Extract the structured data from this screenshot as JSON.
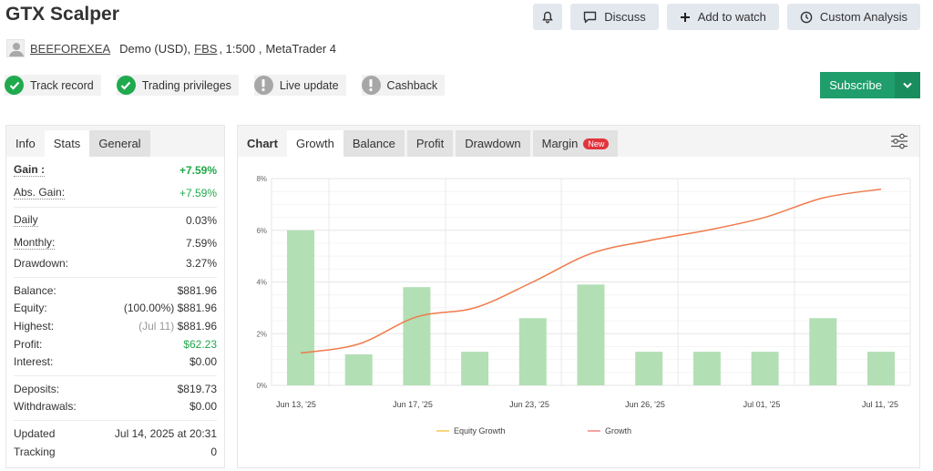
{
  "header": {
    "title": "GTX Scalper",
    "owner": "BEEFOREXEA",
    "account_type": "Demo (USD),",
    "broker": "FBS",
    "leverage": ", 1:500 ,",
    "platform": "MetaTrader 4"
  },
  "actions": {
    "notify_icon": "bell-icon",
    "discuss": "Discuss",
    "add_watch": "Add to watch",
    "custom_analysis": "Custom Analysis"
  },
  "badges": [
    {
      "label": "Track record",
      "status": "ok"
    },
    {
      "label": "Trading privileges",
      "status": "ok"
    },
    {
      "label": "Live update",
      "status": "warn"
    },
    {
      "label": "Cashback",
      "status": "warn"
    }
  ],
  "subscribe": {
    "label": "Subscribe"
  },
  "left_panel": {
    "tabs": [
      "Info",
      "Stats",
      "General"
    ],
    "active_tab": "Stats",
    "gain": {
      "label": "Gain :",
      "value": "+7.59%"
    },
    "abs_gain": {
      "label": "Abs. Gain:",
      "value": "+7.59%"
    },
    "daily": {
      "label": "Daily",
      "value": "0.03%"
    },
    "monthly": {
      "label": "Monthly:",
      "value": "7.59%"
    },
    "drawdown": {
      "label": "Drawdown:",
      "value": "3.27%"
    },
    "balance": {
      "label": "Balance:",
      "value": "$881.96"
    },
    "equity": {
      "label": "Equity:",
      "pct": "(100.00%)",
      "value": "$881.96"
    },
    "highest": {
      "label": "Highest:",
      "date": "(Jul 11)",
      "value": "$881.96"
    },
    "profit": {
      "label": "Profit:",
      "value": "$62.23"
    },
    "interest": {
      "label": "Interest:",
      "value": "$0.00"
    },
    "deposits": {
      "label": "Deposits:",
      "value": "$819.73"
    },
    "withdrawals": {
      "label": "Withdrawals:",
      "value": "$0.00"
    },
    "updated": {
      "label": "Updated",
      "value": "Jul 14, 2025 at 20:31"
    },
    "tracking": {
      "label": "Tracking",
      "value": "0"
    }
  },
  "right_panel": {
    "tabs": [
      "Chart",
      "Growth",
      "Balance",
      "Profit",
      "Drawdown",
      "Margin"
    ],
    "active_tab": "Growth",
    "new_badge": "New"
  },
  "colors": {
    "bar": "#b3dfb5",
    "growth_line": "#f07a4a",
    "equity_legend": "#f9d77e",
    "growth_legend": "#f3a4a0",
    "accent_green": "#1f9d6b"
  },
  "chart_data": {
    "type": "bar",
    "title": "",
    "xlabel": "",
    "ylabel": "",
    "ylim": [
      0,
      8
    ],
    "yticks": [
      "0%",
      "2%",
      "4%",
      "6%",
      "8%"
    ],
    "xticks": [
      "Jun 13, '25",
      "Jun 17, '25",
      "Jun 23, '25",
      "Jun 26, '25",
      "Jul 01, '25",
      "Jul 11, '25"
    ],
    "grid": true,
    "legend": [
      "Equity Growth",
      "Growth"
    ],
    "legend_position": "bottom",
    "series": [
      {
        "name": "Daily gain bars (%)",
        "type": "bar",
        "values": [
          6.0,
          1.2,
          3.8,
          1.3,
          2.6,
          3.9,
          1.3,
          1.3,
          1.3,
          2.6,
          1.3
        ]
      },
      {
        "name": "Growth",
        "type": "line",
        "values": [
          1.25,
          1.6,
          2.65,
          3.0,
          4.0,
          5.1,
          5.6,
          6.0,
          6.5,
          7.25,
          7.59
        ]
      },
      {
        "name": "Equity Growth",
        "type": "line",
        "values": []
      }
    ]
  }
}
